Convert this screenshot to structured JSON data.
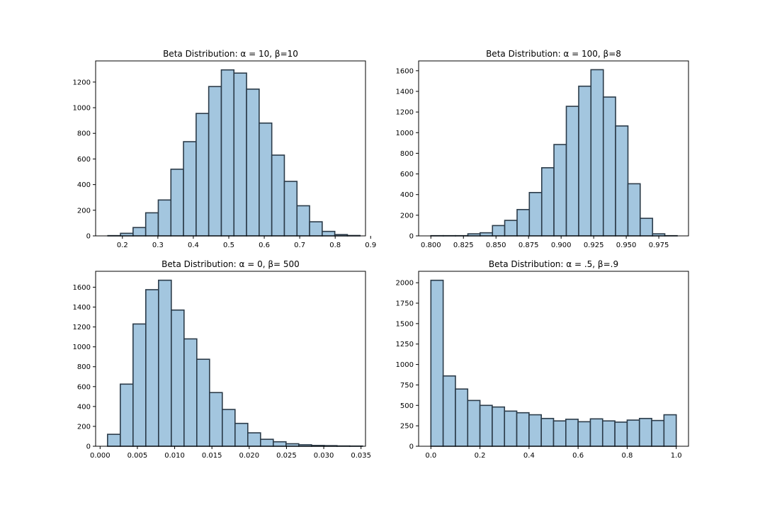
{
  "style": {
    "bar_fill": "#a3c6df",
    "bar_stroke": "#2b3b49",
    "axes_stroke": "#000000",
    "background": "#ffffff"
  },
  "chart_data": [
    {
      "type": "bar",
      "histogram": true,
      "title": "Beta Distribution: α = 10, β=10",
      "xlabel": "",
      "ylabel": "",
      "xlim": [
        0.1245,
        0.8855
      ],
      "ylim": [
        0,
        1365
      ],
      "x_ticks": [
        0.2,
        0.3,
        0.4,
        0.5,
        0.6,
        0.7,
        0.8,
        0.9
      ],
      "x_tick_labels": [
        "0.2",
        "0.3",
        "0.4",
        "0.5",
        "0.6",
        "0.7",
        "0.8",
        "0.9"
      ],
      "y_ticks": [
        0,
        200,
        400,
        600,
        800,
        1000,
        1200
      ],
      "y_tick_labels": [
        "0",
        "200",
        "400",
        "600",
        "800",
        "1000",
        "1200"
      ],
      "bin_edges": [
        0.159,
        0.1946,
        0.2301,
        0.2657,
        0.3012,
        0.3368,
        0.3723,
        0.4079,
        0.4434,
        0.479,
        0.5145,
        0.5501,
        0.5856,
        0.6212,
        0.6567,
        0.6923,
        0.7278,
        0.7634,
        0.7989,
        0.8345,
        0.87
      ],
      "values": [
        2,
        20,
        65,
        180,
        280,
        520,
        735,
        955,
        1165,
        1295,
        1270,
        1145,
        880,
        630,
        425,
        235,
        110,
        35,
        10,
        3
      ]
    },
    {
      "type": "bar",
      "histogram": true,
      "title": "Beta Distribution: α = 100, β=8",
      "xlabel": "",
      "ylabel": "",
      "xlim": [
        0.7906,
        0.9978
      ],
      "ylim": [
        0,
        1695
      ],
      "x_ticks": [
        0.8,
        0.825,
        0.85,
        0.875,
        0.9,
        0.925,
        0.95,
        0.975
      ],
      "x_tick_labels": [
        "0.800",
        "0.825",
        "0.850",
        "0.875",
        "0.900",
        "0.925",
        "0.950",
        "0.975"
      ],
      "y_ticks": [
        0,
        200,
        400,
        600,
        800,
        1000,
        1200,
        1400,
        1600
      ],
      "y_tick_labels": [
        "0",
        "200",
        "400",
        "600",
        "800",
        "1000",
        "1200",
        "1400",
        "1600"
      ],
      "bin_edges": [
        0.8,
        0.8095,
        0.8189,
        0.8284,
        0.8378,
        0.8473,
        0.8567,
        0.8662,
        0.8756,
        0.8851,
        0.8945,
        0.904,
        0.9135,
        0.9229,
        0.9324,
        0.9418,
        0.9513,
        0.9607,
        0.9702,
        0.9796,
        0.9891
      ],
      "values": [
        2,
        2,
        2,
        20,
        30,
        100,
        150,
        255,
        420,
        660,
        885,
        1255,
        1450,
        1610,
        1345,
        1065,
        505,
        170,
        20,
        2
      ]
    },
    {
      "type": "bar",
      "histogram": true,
      "title": "Beta Distribution: α = 0, β= 500",
      "xlabel": "",
      "ylabel": "",
      "xlim": [
        -0.0006,
        0.0356
      ],
      "ylim": [
        0,
        1760
      ],
      "x_ticks": [
        0,
        0.005,
        0.01,
        0.015,
        0.02,
        0.025,
        0.03,
        0.035
      ],
      "x_tick_labels": [
        "0.000",
        "0.005",
        "0.010",
        "0.015",
        "0.020",
        "0.025",
        "0.030",
        "0.035"
      ],
      "y_ticks": [
        0,
        200,
        400,
        600,
        800,
        1000,
        1200,
        1400,
        1600
      ],
      "y_tick_labels": [
        "0",
        "200",
        "400",
        "600",
        "800",
        "1000",
        "1200",
        "1400",
        "1600"
      ],
      "bin_edges": [
        0.001,
        0.00271,
        0.00442,
        0.00613,
        0.00784,
        0.00955,
        0.01126,
        0.01297,
        0.01468,
        0.01639,
        0.0181,
        0.01981,
        0.02152,
        0.02323,
        0.02494,
        0.02665,
        0.02836,
        0.03007,
        0.03178,
        0.03349,
        0.0352
      ],
      "values": [
        120,
        625,
        1230,
        1575,
        1670,
        1370,
        1080,
        875,
        540,
        370,
        230,
        135,
        70,
        45,
        25,
        15,
        8,
        6,
        3,
        2
      ]
    },
    {
      "type": "bar",
      "histogram": true,
      "title": "Beta Distribution: α = .5, β=.9",
      "xlabel": "",
      "ylabel": "",
      "xlim": [
        -0.05,
        1.05
      ],
      "ylim": [
        0,
        2140
      ],
      "x_ticks": [
        0,
        0.2,
        0.4,
        0.6,
        0.8,
        1.0
      ],
      "x_tick_labels": [
        "0.0",
        "0.2",
        "0.4",
        "0.6",
        "0.8",
        "1.0"
      ],
      "y_ticks": [
        0,
        250,
        500,
        750,
        1000,
        1250,
        1500,
        1750,
        2000
      ],
      "y_tick_labels": [
        "0",
        "250",
        "500",
        "750",
        "1000",
        "1250",
        "1500",
        "1750",
        "2000"
      ],
      "bin_edges": [
        0,
        0.05,
        0.1,
        0.15,
        0.2,
        0.25,
        0.3,
        0.35,
        0.4,
        0.45,
        0.5,
        0.55,
        0.6,
        0.65,
        0.7,
        0.75,
        0.8,
        0.85,
        0.9,
        0.95,
        1.0
      ],
      "values": [
        2030,
        860,
        700,
        560,
        500,
        480,
        430,
        410,
        385,
        340,
        310,
        330,
        300,
        335,
        310,
        295,
        320,
        340,
        315,
        385
      ]
    }
  ]
}
